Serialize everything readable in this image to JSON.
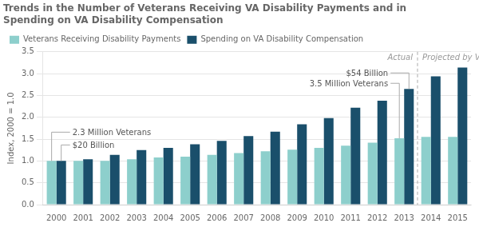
{
  "chart_data": {
    "type": "bar",
    "title": [
      "Trends in the Number of Veterans Receiving VA Disability Payments and in",
      "Spending on VA Disability Compensation"
    ],
    "ylabel": "Index, 2000 = 1.0",
    "categories": [
      "2000",
      "2001",
      "2002",
      "2003",
      "2004",
      "2005",
      "2006",
      "2007",
      "2008",
      "2009",
      "2010",
      "2011",
      "2012",
      "2013",
      "2014",
      "2015"
    ],
    "series": [
      {
        "name": "Veterans Receiving Disability Payments",
        "color": "#8dcfcc",
        "values": [
          1.0,
          1.0,
          1.0,
          1.04,
          1.08,
          1.1,
          1.14,
          1.18,
          1.22,
          1.26,
          1.3,
          1.35,
          1.42,
          1.52,
          1.55,
          1.55
        ]
      },
      {
        "name": "Spending on VA Disability Compensation",
        "color": "#1a4f6b",
        "values": [
          1.0,
          1.04,
          1.14,
          1.25,
          1.3,
          1.38,
          1.46,
          1.57,
          1.67,
          1.84,
          1.98,
          2.22,
          2.38,
          2.65,
          2.94,
          3.14
        ]
      }
    ],
    "ylim": [
      0,
      3.5
    ],
    "yticks": [
      {
        "value": 0,
        "label": "0.0"
      },
      0.5,
      {
        "value": 1.0,
        "label": "1.0"
      },
      1.5,
      {
        "value": 2.0,
        "label": "2.0"
      },
      2.5,
      {
        "value": 3.0,
        "label": "3.0"
      },
      3.5
    ],
    "grid": true,
    "legend": "upper left",
    "annotations": [
      {
        "text": "2.3 Million Veterans",
        "x": "2000",
        "series": "Veterans Receiving Disability Payments"
      },
      {
        "text": "$20 Billion",
        "x": "2000",
        "series": "Spending on VA Disability Compensation"
      },
      {
        "text": "$54 Billion",
        "x": "2013",
        "series": "Spending on VA Disability Compensation"
      },
      {
        "text": "3.5 Million Veterans",
        "x": "2013",
        "series": "Veterans Receiving Disability Payments"
      },
      {
        "text": "Actual",
        "x": "2013"
      },
      {
        "text": "Projected by VA",
        "x": "2014"
      }
    ]
  }
}
